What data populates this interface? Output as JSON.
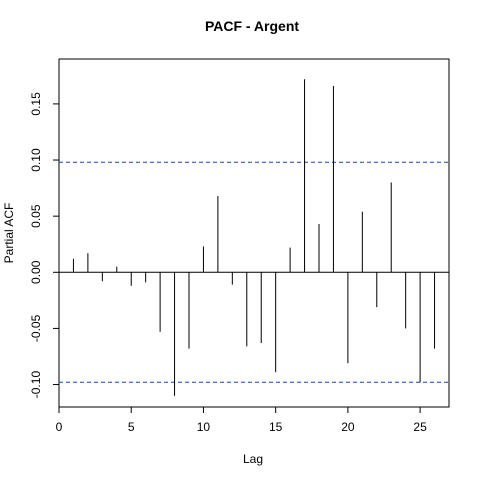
{
  "chart_data": {
    "type": "bar",
    "title": "PACF - Argent",
    "xlabel": "Lag",
    "ylabel": "Partial ACF",
    "xlim": [
      0,
      27
    ],
    "ylim": [
      -0.12,
      0.19
    ],
    "xticks": [
      0,
      5,
      10,
      15,
      20,
      25
    ],
    "yticks": [
      -0.1,
      -0.05,
      0.0,
      0.05,
      0.1,
      0.15
    ],
    "ytick_labels": [
      "-0.10",
      "-0.05",
      "0.00",
      "0.05",
      "0.10",
      "0.15"
    ],
    "confidence_limit": 0.098,
    "confidence_line_color": "#1f3fbf",
    "grid": false,
    "series": [
      {
        "x": [
          1,
          2,
          3,
          4,
          5,
          6,
          7,
          8,
          9,
          10,
          11,
          12,
          13,
          14,
          15,
          16,
          17,
          18,
          19,
          20,
          21,
          22,
          23,
          24,
          25,
          26
        ],
        "values": [
          0.012,
          0.017,
          -0.008,
          0.005,
          -0.012,
          -0.009,
          -0.053,
          -0.11,
          -0.068,
          0.023,
          0.068,
          -0.011,
          -0.066,
          -0.063,
          -0.089,
          0.022,
          0.172,
          0.043,
          0.166,
          -0.081,
          0.054,
          -0.031,
          0.08,
          -0.05,
          -0.098,
          -0.068
        ]
      }
    ]
  }
}
